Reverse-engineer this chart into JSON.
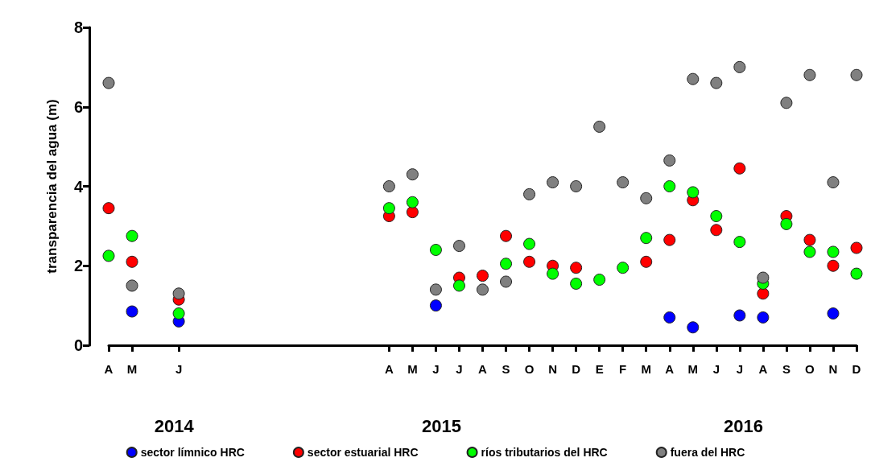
{
  "chart_data": {
    "type": "scatter",
    "ylabel": "transparencia del agua (m)",
    "categories": [
      "A",
      "M",
      null,
      "J",
      null,
      null,
      null,
      null,
      null,
      null,
      null,
      null,
      "A",
      "M",
      "J",
      "J",
      "A",
      "S",
      "O",
      "N",
      "D",
      "E",
      "F",
      "M",
      "A",
      "M",
      "J",
      "J",
      "A",
      "S",
      "O",
      "N",
      "D"
    ],
    "annotations": [
      "2014",
      "2015",
      "2016"
    ],
    "ylim": [
      0,
      8
    ],
    "yticks": [
      0,
      2,
      4,
      6,
      8
    ],
    "grid": false,
    "legend": "bottom",
    "marker": "circle",
    "series": [
      {
        "name": "sector límnico HRC",
        "color": "#0000ff",
        "values": [
          null,
          0.85,
          null,
          0.6,
          null,
          null,
          null,
          null,
          null,
          null,
          null,
          null,
          null,
          null,
          1.0,
          null,
          null,
          null,
          null,
          null,
          null,
          null,
          null,
          null,
          0.7,
          0.45,
          null,
          0.75,
          0.7,
          null,
          null,
          0.8,
          null
        ]
      },
      {
        "name": "sector estuarial HRC",
        "color": "#ff0000",
        "values": [
          3.45,
          2.1,
          null,
          1.15,
          null,
          null,
          null,
          null,
          null,
          null,
          null,
          null,
          3.25,
          3.35,
          null,
          1.7,
          1.75,
          2.75,
          2.1,
          2.0,
          1.95,
          null,
          null,
          2.1,
          2.65,
          3.65,
          2.9,
          4.45,
          1.3,
          3.25,
          2.65,
          2.0,
          2.45
        ]
      },
      {
        "name": "ríos tributarios del HRC",
        "color": "#00ff00",
        "values": [
          2.25,
          2.75,
          null,
          0.8,
          null,
          null,
          null,
          null,
          null,
          null,
          null,
          null,
          3.45,
          3.6,
          2.4,
          1.5,
          null,
          2.05,
          2.55,
          1.8,
          1.55,
          1.65,
          1.95,
          2.7,
          4.0,
          3.85,
          3.25,
          2.6,
          1.55,
          3.05,
          2.35,
          2.35,
          1.8
        ]
      },
      {
        "name": "fuera del HRC",
        "color": "#808080",
        "values": [
          6.6,
          1.5,
          null,
          1.3,
          null,
          null,
          null,
          null,
          null,
          null,
          null,
          null,
          4.0,
          4.3,
          1.4,
          2.5,
          1.4,
          1.6,
          3.8,
          4.1,
          4.0,
          5.5,
          4.1,
          3.7,
          4.65,
          6.7,
          6.6,
          7.0,
          1.7,
          6.1,
          6.8,
          4.1,
          6.8
        ]
      }
    ]
  }
}
